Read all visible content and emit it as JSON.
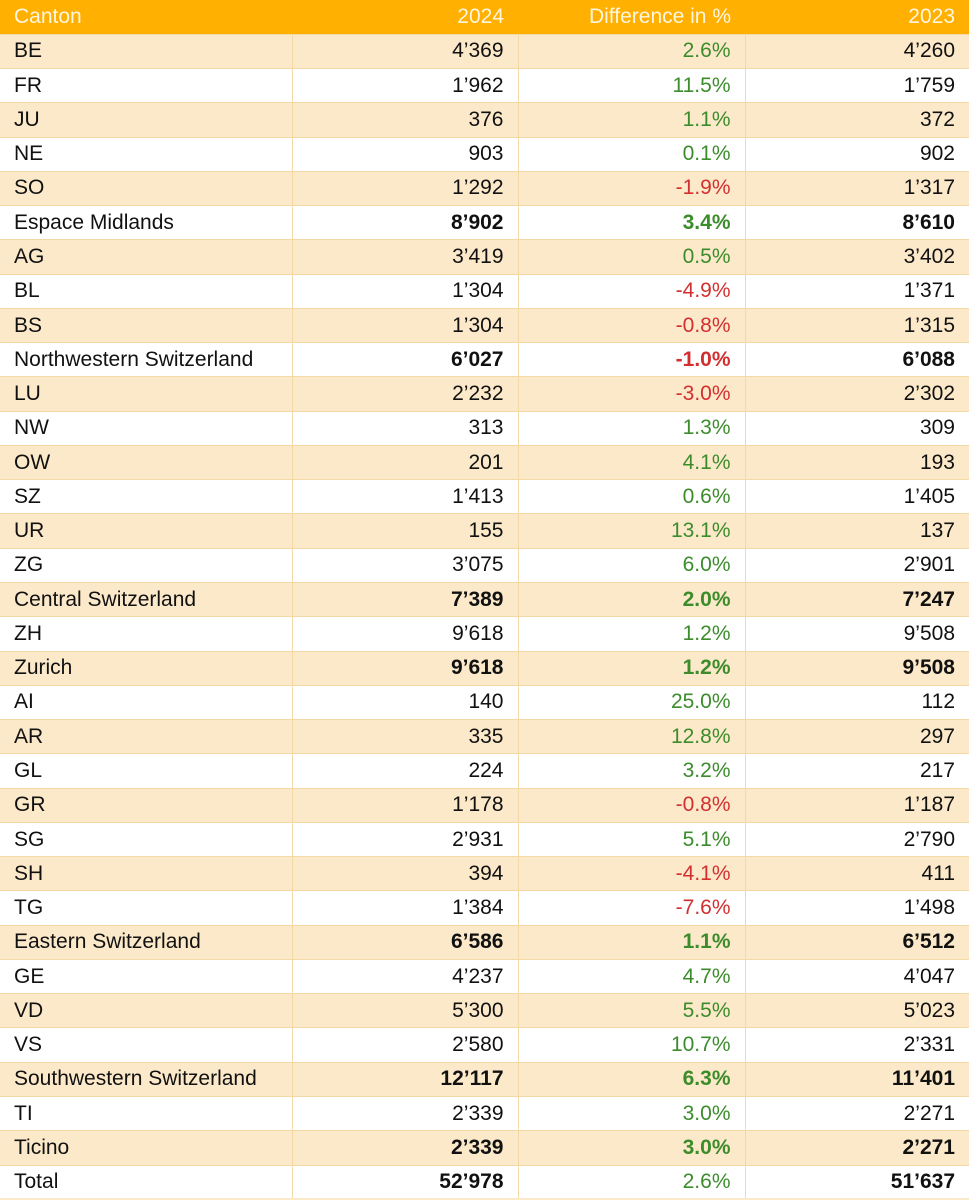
{
  "colors": {
    "header_bg": "#FFB000",
    "stripe": "#FCE9C9",
    "positive": "#3C8C2C",
    "negative": "#D23030"
  },
  "headers": [
    "Canton",
    "2024",
    "Difference in %",
    "2023"
  ],
  "rows": [
    {
      "name": "BE",
      "y2024": "4’369",
      "diff": "2.6%",
      "y2023": "4’260",
      "bold": false
    },
    {
      "name": "FR",
      "y2024": "1’962",
      "diff": "11.5%",
      "y2023": "1’759",
      "bold": false
    },
    {
      "name": "JU",
      "y2024": "376",
      "diff": "1.1%",
      "y2023": "372",
      "bold": false
    },
    {
      "name": "NE",
      "y2024": "903",
      "diff": "0.1%",
      "y2023": "902",
      "bold": false
    },
    {
      "name": "SO",
      "y2024": "1’292",
      "diff": "-1.9%",
      "y2023": "1’317",
      "bold": false
    },
    {
      "name": "Espace Midlands",
      "y2024": "8’902",
      "diff": "3.4%",
      "y2023": "8’610",
      "bold": true
    },
    {
      "name": "AG",
      "y2024": "3’419",
      "diff": "0.5%",
      "y2023": "3’402",
      "bold": false
    },
    {
      "name": "BL",
      "y2024": "1’304",
      "diff": "-4.9%",
      "y2023": "1’371",
      "bold": false
    },
    {
      "name": "BS",
      "y2024": "1’304",
      "diff": "-0.8%",
      "y2023": "1’315",
      "bold": false
    },
    {
      "name": "Northwestern Switzerland",
      "y2024": "6’027",
      "diff": "-1.0%",
      "y2023": "6’088",
      "bold": true
    },
    {
      "name": "LU",
      "y2024": "2’232",
      "diff": "-3.0%",
      "y2023": "2’302",
      "bold": false
    },
    {
      "name": "NW",
      "y2024": "313",
      "diff": "1.3%",
      "y2023": "309",
      "bold": false
    },
    {
      "name": "OW",
      "y2024": "201",
      "diff": "4.1%",
      "y2023": "193",
      "bold": false
    },
    {
      "name": "SZ",
      "y2024": "1’413",
      "diff": "0.6%",
      "y2023": "1’405",
      "bold": false
    },
    {
      "name": "UR",
      "y2024": "155",
      "diff": "13.1%",
      "y2023": "137",
      "bold": false
    },
    {
      "name": "ZG",
      "y2024": "3’075",
      "diff": "6.0%",
      "y2023": "2’901",
      "bold": false
    },
    {
      "name": "Central Switzerland",
      "y2024": "7’389",
      "diff": "2.0%",
      "y2023": "7’247",
      "bold": true
    },
    {
      "name": "ZH",
      "y2024": "9’618",
      "diff": "1.2%",
      "y2023": "9’508",
      "bold": false
    },
    {
      "name": "Zurich",
      "y2024": "9’618",
      "diff": "1.2%",
      "y2023": "9’508",
      "bold": true
    },
    {
      "name": "AI",
      "y2024": "140",
      "diff": "25.0%",
      "y2023": "112",
      "bold": false
    },
    {
      "name": "AR",
      "y2024": "335",
      "diff": "12.8%",
      "y2023": "297",
      "bold": false
    },
    {
      "name": "GL",
      "y2024": "224",
      "diff": "3.2%",
      "y2023": "217",
      "bold": false
    },
    {
      "name": "GR",
      "y2024": "1’178",
      "diff": "-0.8%",
      "y2023": "1’187",
      "bold": false
    },
    {
      "name": "SG",
      "y2024": "2’931",
      "diff": "5.1%",
      "y2023": "2’790",
      "bold": false
    },
    {
      "name": "SH",
      "y2024": "394",
      "diff": "-4.1%",
      "y2023": "411",
      "bold": false
    },
    {
      "name": "TG",
      "y2024": "1’384",
      "diff": "-7.6%",
      "y2023": "1’498",
      "bold": false
    },
    {
      "name": "Eastern Switzerland",
      "y2024": "6’586",
      "diff": "1.1%",
      "y2023": "6’512",
      "bold": true
    },
    {
      "name": "GE",
      "y2024": "4’237",
      "diff": "4.7%",
      "y2023": "4’047",
      "bold": false
    },
    {
      "name": "VD",
      "y2024": "5’300",
      "diff": "5.5%",
      "y2023": "5’023",
      "bold": false
    },
    {
      "name": "VS",
      "y2024": "2’580",
      "diff": "10.7%",
      "y2023": "2’331",
      "bold": false
    },
    {
      "name": "Southwestern Switzerland",
      "y2024": "12’117",
      "diff": "6.3%",
      "y2023": "11’401",
      "bold": true
    },
    {
      "name": "TI",
      "y2024": "2’339",
      "diff": "3.0%",
      "y2023": "2’271",
      "bold": false
    },
    {
      "name": "Ticino",
      "y2024": "2’339",
      "diff": "3.0%",
      "y2023": "2’271",
      "bold": true
    },
    {
      "name": "Total",
      "y2024": "52’978",
      "diff": "2.6%",
      "y2023": "51’637",
      "bold": true,
      "total": true
    }
  ]
}
